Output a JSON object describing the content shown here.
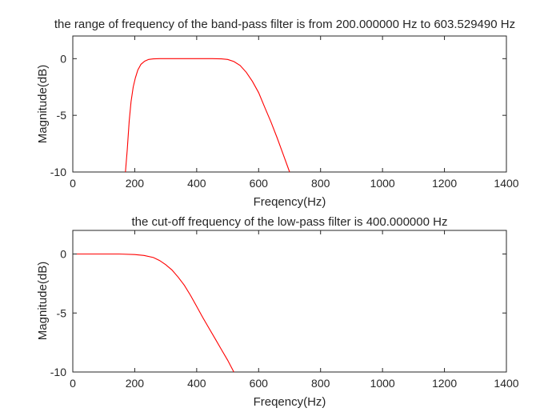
{
  "chart_data": [
    {
      "type": "line",
      "title": "the range of frequency of the band-pass filter is from 200.000000 Hz to 603.529490 Hz",
      "xlabel": "Freqency(Hz)",
      "ylabel": "Magnitude(dB)",
      "xlim": [
        0,
        1400
      ],
      "ylim": [
        -10,
        2
      ],
      "xticks": [
        "0",
        "200",
        "400",
        "600",
        "800",
        "1000",
        "1200",
        "1400"
      ],
      "yticks": [
        "0",
        "-5",
        "-10"
      ],
      "grid": false,
      "line_color": "#ff0000",
      "series": [
        {
          "x": [
            170,
            176,
            182,
            188,
            195,
            202,
            210,
            220,
            232,
            245,
            260,
            280,
            300,
            350,
            400,
            450,
            480,
            500,
            520,
            540,
            560,
            580,
            600,
            620,
            640,
            660,
            680,
            700
          ],
          "y": [
            -10.0,
            -8.0,
            -5.5,
            -3.8,
            -2.5,
            -1.7,
            -1.0,
            -0.5,
            -0.22,
            -0.07,
            -0.02,
            0.0,
            0.0,
            0.0,
            0.0,
            0.0,
            -0.02,
            -0.07,
            -0.25,
            -0.6,
            -1.2,
            -2.0,
            -3.0,
            -4.3,
            -5.6,
            -7.0,
            -8.5,
            -10.0
          ]
        }
      ]
    },
    {
      "type": "line",
      "title": "the cut-off frequency of the low-pass filter is 400.000000 Hz",
      "xlabel": "Freqency(Hz)",
      "ylabel": "Magnitude(dB)",
      "xlim": [
        0,
        1400
      ],
      "ylim": [
        -10,
        2
      ],
      "xticks": [
        "0",
        "200",
        "400",
        "600",
        "800",
        "1000",
        "1200",
        "1400"
      ],
      "yticks": [
        "0",
        "-5",
        "-10"
      ],
      "grid": false,
      "line_color": "#ff0000",
      "series": [
        {
          "x": [
            0,
            50,
            100,
            150,
            200,
            230,
            260,
            280,
            300,
            320,
            340,
            360,
            380,
            400,
            420,
            440,
            460,
            480,
            500,
            520
          ],
          "y": [
            0.0,
            0.0,
            0.0,
            0.0,
            -0.05,
            -0.12,
            -0.3,
            -0.55,
            -0.9,
            -1.35,
            -1.95,
            -2.65,
            -3.5,
            -4.45,
            -5.4,
            -6.3,
            -7.2,
            -8.1,
            -9.0,
            -10.0
          ]
        }
      ]
    }
  ]
}
